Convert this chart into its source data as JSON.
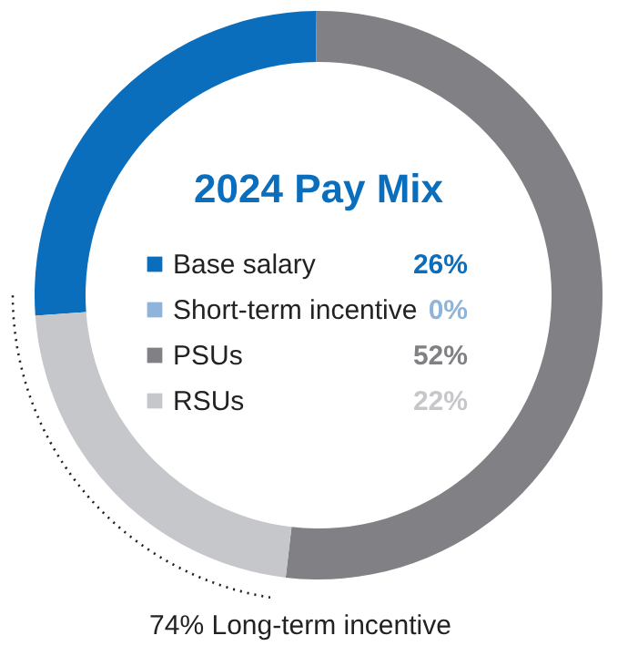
{
  "chart_data": {
    "type": "donut",
    "title": "2024 Pay Mix",
    "categories": [
      "Base salary",
      "Short-term incentive",
      "PSUs",
      "RSUs"
    ],
    "values": [
      26,
      0,
      52,
      22
    ],
    "colors": [
      "#0a6ebd",
      "#8fb4dc",
      "#808085",
      "#c6c7cb"
    ],
    "legend": "center",
    "value_labels": [
      "26%",
      "0%",
      "52%",
      "22%"
    ],
    "annotations": [
      "74% Long-term incentive"
    ]
  }
}
